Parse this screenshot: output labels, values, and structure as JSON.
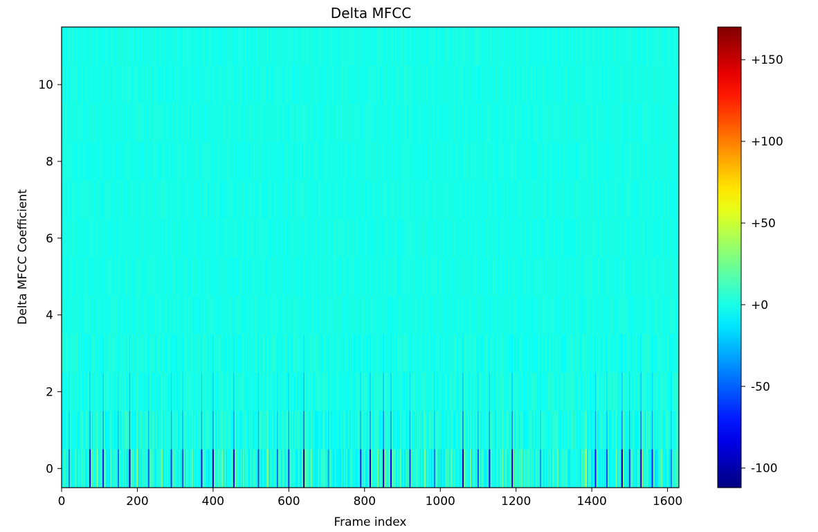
{
  "chart_data": {
    "type": "heatmap",
    "title": "Delta MFCC",
    "xlabel": "Frame index",
    "ylabel": "Delta MFCC Coefficient",
    "xlim": [
      0,
      1630
    ],
    "ylim": [
      -0.5,
      11.5
    ],
    "x_ticks": [
      0,
      200,
      400,
      600,
      800,
      1000,
      1200,
      1400,
      1600
    ],
    "y_ticks": [
      0,
      2,
      4,
      6,
      8,
      10
    ],
    "colorbar": {
      "range": [
        -112,
        170
      ],
      "ticks": [
        {
          "value": -100,
          "label": "-100"
        },
        {
          "value": -50,
          "label": "-50"
        },
        {
          "value": 0,
          "label": "+0"
        },
        {
          "value": 50,
          "label": "+50"
        },
        {
          "value": 100,
          "label": "+100"
        },
        {
          "value": 150,
          "label": "+150"
        }
      ],
      "colormap": "jet"
    },
    "n_frames": 1630,
    "n_coefficients": 12,
    "background_value": 0,
    "events_coef0": [
      {
        "frame": 20,
        "value": -40
      },
      {
        "frame": 75,
        "value": -75
      },
      {
        "frame": 95,
        "value": 30
      },
      {
        "frame": 110,
        "value": -70
      },
      {
        "frame": 130,
        "value": 20
      },
      {
        "frame": 150,
        "value": -45
      },
      {
        "frame": 180,
        "value": -90
      },
      {
        "frame": 200,
        "value": 40
      },
      {
        "frame": 230,
        "value": -50
      },
      {
        "frame": 265,
        "value": 30
      },
      {
        "frame": 290,
        "value": -60
      },
      {
        "frame": 320,
        "value": -55
      },
      {
        "frame": 345,
        "value": 25
      },
      {
        "frame": 370,
        "value": -70
      },
      {
        "frame": 400,
        "value": -85
      },
      {
        "frame": 425,
        "value": 35
      },
      {
        "frame": 455,
        "value": -80
      },
      {
        "frame": 480,
        "value": 20
      },
      {
        "frame": 520,
        "value": -55
      },
      {
        "frame": 545,
        "value": 40
      },
      {
        "frame": 570,
        "value": -45
      },
      {
        "frame": 600,
        "value": -60
      },
      {
        "frame": 640,
        "value": -105
      },
      {
        "frame": 660,
        "value": 25
      },
      {
        "frame": 705,
        "value": -30
      },
      {
        "frame": 790,
        "value": -65
      },
      {
        "frame": 815,
        "value": -85
      },
      {
        "frame": 835,
        "value": 30
      },
      {
        "frame": 850,
        "value": -90
      },
      {
        "frame": 870,
        "value": -75
      },
      {
        "frame": 895,
        "value": 25
      },
      {
        "frame": 920,
        "value": -60
      },
      {
        "frame": 960,
        "value": 30
      },
      {
        "frame": 985,
        "value": -45
      },
      {
        "frame": 1030,
        "value": 20
      },
      {
        "frame": 1060,
        "value": -95
      },
      {
        "frame": 1080,
        "value": 35
      },
      {
        "frame": 1100,
        "value": -50
      },
      {
        "frame": 1130,
        "value": -70
      },
      {
        "frame": 1165,
        "value": 30
      },
      {
        "frame": 1190,
        "value": -85
      },
      {
        "frame": 1215,
        "value": 20
      },
      {
        "frame": 1265,
        "value": -35
      },
      {
        "frame": 1310,
        "value": 25
      },
      {
        "frame": 1385,
        "value": 45
      },
      {
        "frame": 1410,
        "value": -70
      },
      {
        "frame": 1440,
        "value": -55
      },
      {
        "frame": 1465,
        "value": 30
      },
      {
        "frame": 1480,
        "value": -95
      },
      {
        "frame": 1500,
        "value": -60
      },
      {
        "frame": 1530,
        "value": -100
      },
      {
        "frame": 1560,
        "value": -65
      },
      {
        "frame": 1585,
        "value": 25
      },
      {
        "frame": 1610,
        "value": -40
      }
    ]
  }
}
